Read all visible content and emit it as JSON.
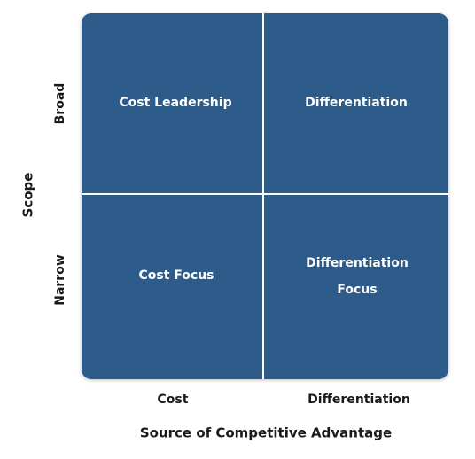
{
  "y_axis": {
    "title": "Scope",
    "labels": [
      "Broad",
      "Narrow"
    ]
  },
  "x_axis": {
    "title": "Source of Competitive Advantage",
    "labels": [
      "Cost",
      "Differentiation"
    ]
  },
  "cells": [
    [
      "Cost Leadership"
    ],
    [
      "Differentiation"
    ],
    [
      "Cost Focus"
    ],
    [
      "Differentiation",
      "Focus"
    ]
  ]
}
